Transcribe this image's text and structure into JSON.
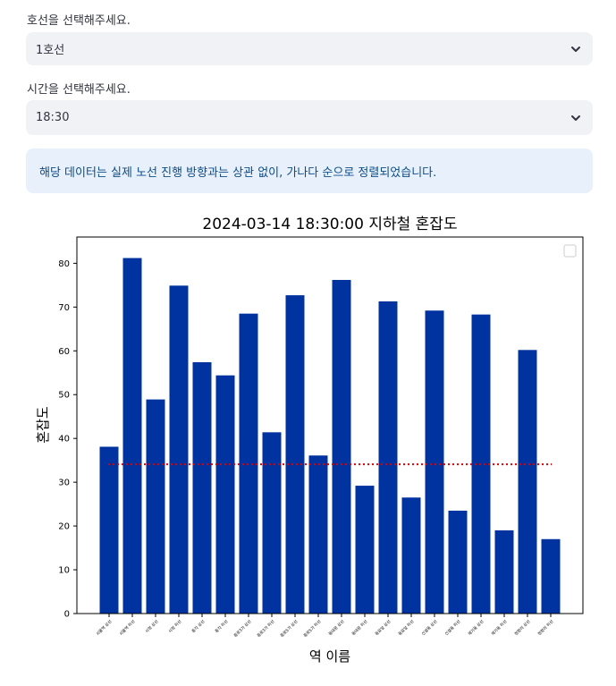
{
  "form": {
    "line_label": "호선을 선택해주세요.",
    "line_value": "1호선",
    "time_label": "시간을 선택해주세요.",
    "time_value": "18:30"
  },
  "info_text": "해당 데이터는 실제 노선 진행 방향과는 상관 없이, 가나다 순으로 정렬되었습니다.",
  "colors": {
    "bar": "#0033a0",
    "mean_line": "#e00000",
    "select_bg": "#f0f2f6",
    "info_bg": "#e8f1fb",
    "info_text": "#0b4b89"
  },
  "icons": [
    "chevron-down-icon",
    "chevron-down-icon"
  ],
  "chart_data": {
    "type": "bar",
    "title": "2024-03-14 18:30:00 지하철 혼잡도",
    "xlabel": "역 이름",
    "ylabel": "혼잡도",
    "ylim": [
      0,
      86
    ],
    "yticks": [
      0,
      10,
      20,
      30,
      40,
      50,
      60,
      70,
      80
    ],
    "categories": [
      "서울역 상선",
      "서울역 하선",
      "시청 상선",
      "시청 하선",
      "종각 상선",
      "종각 하선",
      "종로3가 상선",
      "종로3가 하선",
      "종로5가 상선",
      "종로5가 하선",
      "동대문 상선",
      "동대문 하선",
      "동묘앞 상선",
      "동묘앞 하선",
      "신설동 상선",
      "신설동 하선",
      "제기동 상선",
      "제기동 하선",
      "청량리 상선",
      "청량리 하선"
    ],
    "values": [
      38.1,
      81.2,
      48.9,
      74.9,
      57.4,
      54.4,
      68.5,
      41.4,
      72.7,
      36.1,
      76.2,
      29.2,
      71.3,
      26.5,
      69.2,
      23.5,
      68.3,
      19.0,
      60.2,
      17.0
    ],
    "mean": 34.1,
    "mean_line_style": "dotted",
    "legend": "top-right",
    "grid": false
  }
}
